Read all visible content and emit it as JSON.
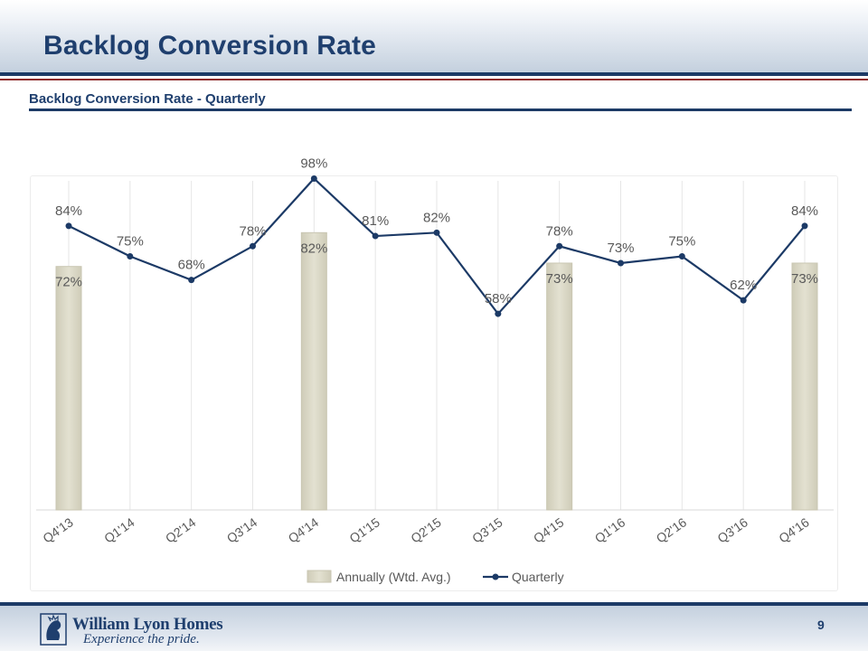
{
  "page": {
    "title": "Backlog Conversion Rate",
    "subtitle": "Backlog Conversion Rate - Quarterly",
    "page_number": "9"
  },
  "footer": {
    "company": "William Lyon Homes",
    "tagline": "Experience the pride."
  },
  "chart_data": {
    "type": "bar+line",
    "title": "Backlog Conversion Rate - Quarterly",
    "categories": [
      "Q4'13",
      "Q1'14",
      "Q2'14",
      "Q3'14",
      "Q4'14",
      "Q1'15",
      "Q2'15",
      "Q3'15",
      "Q4'15",
      "Q1'16",
      "Q2'16",
      "Q3'16",
      "Q4'16"
    ],
    "ylim": [
      0,
      100
    ],
    "series": [
      {
        "name": "Annually (Wtd. Avg.)",
        "type": "bar",
        "color": "#e3e1d1",
        "values": [
          72,
          null,
          null,
          null,
          82,
          null,
          null,
          null,
          73,
          null,
          null,
          null,
          73
        ],
        "labels": [
          "72%",
          null,
          null,
          null,
          "82%",
          null,
          null,
          null,
          "73%",
          null,
          null,
          null,
          "73%"
        ]
      },
      {
        "name": "Quarterly",
        "type": "line",
        "color": "#1c3a66",
        "values": [
          84,
          75,
          68,
          78,
          98,
          81,
          82,
          58,
          78,
          73,
          75,
          62,
          84
        ],
        "labels": [
          "84%",
          "75%",
          "68%",
          "78%",
          "98%",
          "81%",
          "82%",
          "58%",
          "78%",
          "73%",
          "75%",
          "62%",
          "84%"
        ]
      }
    ],
    "legend": [
      "Annually (Wtd. Avg.)",
      "Quarterly"
    ],
    "legend_position": "bottom"
  }
}
